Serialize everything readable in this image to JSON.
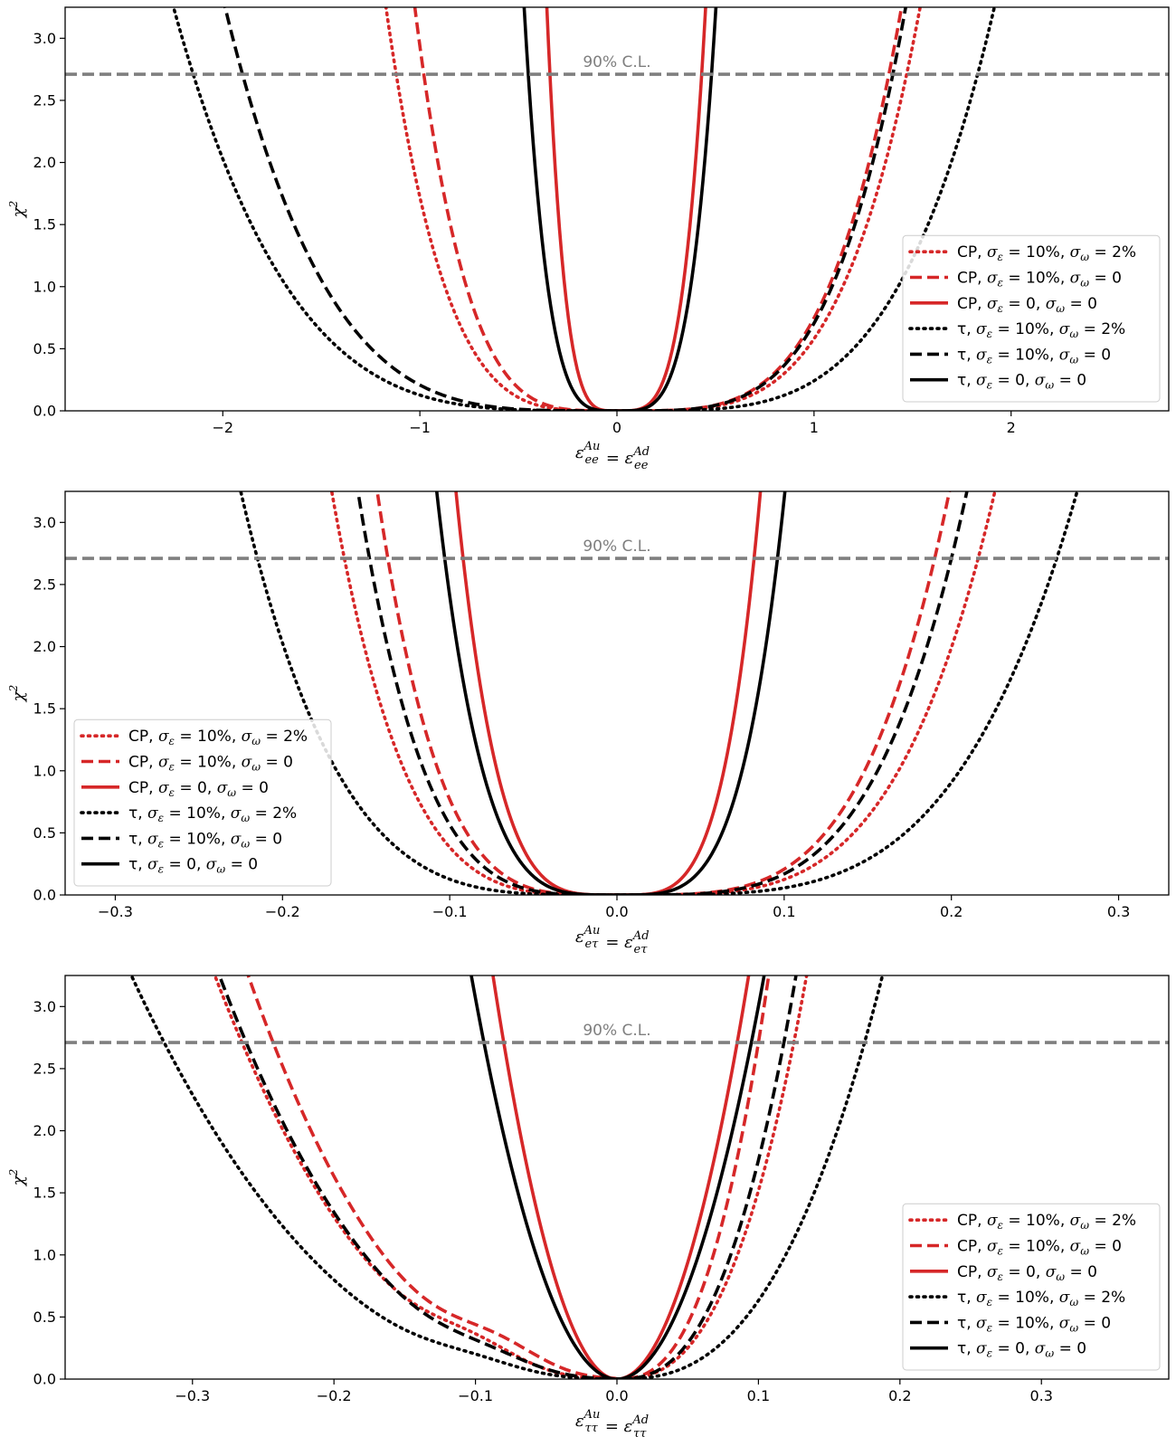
{
  "chart_data": [
    {
      "type": "line",
      "id": "ee",
      "ylabel": "χ²",
      "xlabel": "ε_ee^Au = ε_ee^Ad",
      "xlim": [
        -2.8,
        2.8
      ],
      "ylim": [
        0.0,
        3.25
      ],
      "xticks": [
        -2,
        -1,
        0,
        1,
        2
      ],
      "xtick_labels": [
        "−2",
        "−1",
        "0",
        "1",
        "2"
      ],
      "yticks": [
        0.0,
        0.5,
        1.0,
        1.5,
        2.0,
        2.5,
        3.0
      ],
      "ytick_labels": [
        "0.0",
        "0.5",
        "1.0",
        "1.5",
        "2.0",
        "2.5",
        "3.0"
      ],
      "cl_level": 2.71,
      "cl_label": "90% C.L.",
      "legend_position": "lower-right",
      "series": [
        {
          "name": "CP, σε = 10%, σω = 2%",
          "label": {
            "a": "CP, ",
            "b": " = 10%,  ",
            "c": " = 2%"
          },
          "color": "#d62728",
          "style": "dotted",
          "crossings": [
            -1.12,
            1.47
          ],
          "shape": "quartic"
        },
        {
          "name": "CP, σε = 10%, σω = 0",
          "label": {
            "a": "CP, ",
            "b": " = 10%,  ",
            "c": " = 0"
          },
          "color": "#d62728",
          "style": "dashed",
          "crossings": [
            -0.98,
            1.38
          ],
          "shape": "quartic"
        },
        {
          "name": "CP, σε = 0, σω = 0",
          "label": {
            "a": "CP, ",
            "b": " = 0,  ",
            "c": " = 0"
          },
          "color": "#d62728",
          "style": "solid",
          "crossings": [
            -0.34,
            0.43
          ],
          "shape": "quartic"
        },
        {
          "name": "τ, σε = 10%, σω = 2%",
          "label": {
            "a": "τ, ",
            "b": " = 10%,  ",
            "c": " = 2%"
          },
          "color": "#000000",
          "style": "dotted",
          "crossings": [
            -2.15,
            1.83
          ],
          "shape": "quartic"
        },
        {
          "name": "τ, σε = 10%, σω = 0",
          "label": {
            "a": "τ, ",
            "b": " = 10%,  ",
            "c": " = 0"
          },
          "color": "#000000",
          "style": "dashed",
          "crossings": [
            -1.9,
            1.4
          ],
          "shape": "quartic"
        },
        {
          "name": "τ, σε = 0, σω = 0",
          "label": {
            "a": "τ, ",
            "b": " = 0,  ",
            "c": " = 0"
          },
          "color": "#000000",
          "style": "solid",
          "crossings": [
            -0.45,
            0.48
          ],
          "shape": "quartic"
        }
      ]
    },
    {
      "type": "line",
      "id": "etau",
      "ylabel": "χ²",
      "xlabel": "ε_eτ^Au = ε_eτ^Ad",
      "xlim": [
        -0.33,
        0.33
      ],
      "ylim": [
        0.0,
        3.25
      ],
      "xticks": [
        -0.3,
        -0.2,
        -0.1,
        0.0,
        0.1,
        0.2,
        0.3
      ],
      "xtick_labels": [
        "−0.3",
        "−0.2",
        "−0.1",
        "0.0",
        "0.1",
        "0.2",
        "0.3"
      ],
      "yticks": [
        0.0,
        0.5,
        1.0,
        1.5,
        2.0,
        2.5,
        3.0
      ],
      "ytick_labels": [
        "0.0",
        "0.5",
        "1.0",
        "1.5",
        "2.0",
        "2.5",
        "3.0"
      ],
      "cl_level": 2.71,
      "cl_label": "90% C.L.",
      "legend_position": "lower-left",
      "series": [
        {
          "name": "CP, σε = 10%, σω = 2%",
          "label": {
            "a": "CP, ",
            "b": " = 10%,  ",
            "c": " = 2%"
          },
          "color": "#d62728",
          "style": "dotted",
          "crossings": [
            -0.163,
            0.216
          ],
          "shape": "quartic"
        },
        {
          "name": "CP, σε = 10%, σω = 0",
          "label": {
            "a": "CP, ",
            "b": " = 10%,  ",
            "c": " = 0"
          },
          "color": "#d62728",
          "style": "dashed",
          "crossings": [
            -0.137,
            0.19
          ],
          "shape": "quartic"
        },
        {
          "name": "CP, σε = 0, σω = 0",
          "label": {
            "a": "CP, ",
            "b": " = 0,  ",
            "c": " = 0"
          },
          "color": "#d62728",
          "style": "solid",
          "crossings": [
            -0.092,
            0.082
          ],
          "shape": "quartic"
        },
        {
          "name": "τ, σε = 10%, σω = 2%",
          "label": {
            "a": "τ, ",
            "b": " = 10%,  ",
            "c": " = 2%"
          },
          "color": "#000000",
          "style": "dotted",
          "crossings": [
            -0.215,
            0.263
          ],
          "shape": "quartic"
        },
        {
          "name": "τ, σε = 10%, σω = 0",
          "label": {
            "a": "τ, ",
            "b": " = 10%,  ",
            "c": " = 0"
          },
          "color": "#000000",
          "style": "dashed",
          "crossings": [
            -0.148,
            0.2
          ],
          "shape": "quartic"
        },
        {
          "name": "τ, σε = 0, σω = 0",
          "label": {
            "a": "τ, ",
            "b": " = 0,  ",
            "c": " = 0"
          },
          "color": "#000000",
          "style": "solid",
          "crossings": [
            -0.103,
            0.096
          ],
          "shape": "quartic"
        }
      ]
    },
    {
      "type": "line",
      "id": "tautau",
      "ylabel": "χ²",
      "xlabel": "ε_ττ^Au = ε_ττ^Ad",
      "xlim": [
        -0.39,
        0.39
      ],
      "ylim": [
        0.0,
        3.25
      ],
      "xticks": [
        -0.3,
        -0.2,
        -0.1,
        0.0,
        0.1,
        0.2,
        0.3
      ],
      "xtick_labels": [
        "−0.3",
        "−0.2",
        "−0.1",
        "0.0",
        "0.1",
        "0.2",
        "0.3"
      ],
      "yticks": [
        0.0,
        0.5,
        1.0,
        1.5,
        2.0,
        2.5,
        3.0
      ],
      "ytick_labels": [
        "0.0",
        "0.5",
        "1.0",
        "1.5",
        "2.0",
        "2.5",
        "3.0"
      ],
      "cl_level": 2.71,
      "cl_label": "90% C.L.",
      "legend_position": "lower-right",
      "series": [
        {
          "name": "CP, σε = 10%, σω = 2%",
          "label": {
            "a": "CP, ",
            "b": " = 10%,  ",
            "c": " = 2%"
          },
          "color": "#d62728",
          "style": "dotted",
          "crossings": [
            -0.265,
            0.125
          ],
          "shape": "wiggle",
          "bump": {
            "center": -0.1,
            "height": 0.15,
            "width": 0.045
          }
        },
        {
          "name": "CP, σε = 10%, σω = 0",
          "label": {
            "a": "CP, ",
            "b": " = 10%,  ",
            "c": " = 0"
          },
          "color": "#d62728",
          "style": "dashed",
          "crossings": [
            -0.243,
            0.1
          ],
          "shape": "wiggle",
          "bump": {
            "center": -0.085,
            "height": 0.19,
            "width": 0.045
          }
        },
        {
          "name": "CP, σε = 0, σω = 0",
          "label": {
            "a": "CP, ",
            "b": " = 0,  ",
            "c": " = 0"
          },
          "color": "#d62728",
          "style": "solid",
          "crossings": [
            -0.08,
            0.085
          ],
          "shape": "quadratic"
        },
        {
          "name": "τ, σε = 10%, σω = 2%",
          "label": {
            "a": "τ, ",
            "b": " = 10%,  ",
            "c": " = 2%"
          },
          "color": "#000000",
          "style": "dotted",
          "crossings": [
            -0.32,
            0.175
          ],
          "shape": "wiggle",
          "bump": {
            "center": -0.1,
            "height": 0.07,
            "width": 0.045
          }
        },
        {
          "name": "τ, σε = 10%, σω = 0",
          "label": {
            "a": "τ, ",
            "b": " = 10%,  ",
            "c": " = 0"
          },
          "color": "#000000",
          "style": "dashed",
          "crossings": [
            -0.262,
            0.118
          ],
          "shape": "wiggle",
          "bump": {
            "center": -0.09,
            "height": 0.1,
            "width": 0.045
          }
        },
        {
          "name": "τ, σε = 0, σω = 0",
          "label": {
            "a": "τ, ",
            "b": " = 0,  ",
            "c": " = 0"
          },
          "color": "#000000",
          "style": "solid",
          "crossings": [
            -0.094,
            0.095
          ],
          "shape": "quadratic"
        }
      ]
    }
  ]
}
